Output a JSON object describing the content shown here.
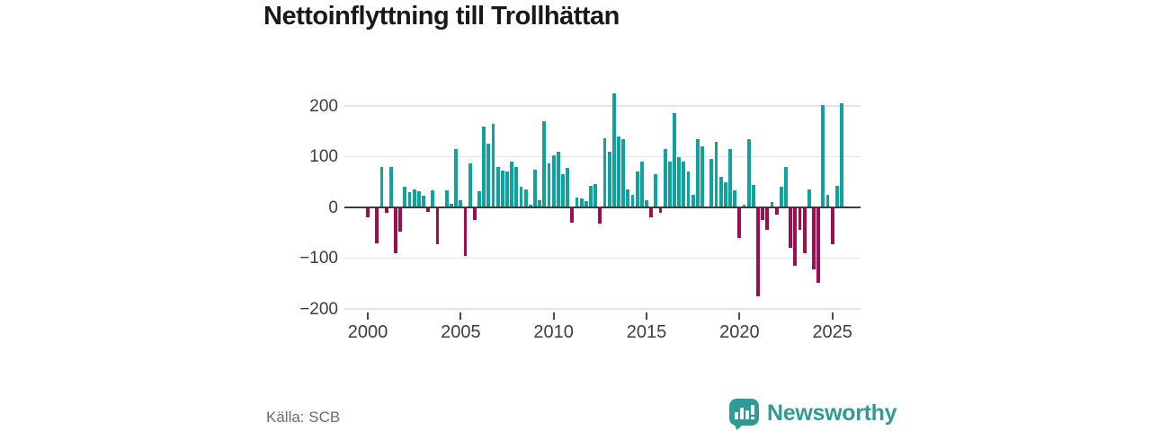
{
  "title": "Nettoinflyttning till Trollhättan",
  "source": "Källa: SCB",
  "branding": {
    "name": "Newsworthy",
    "color": "#2E9C95"
  },
  "chart_data": {
    "type": "bar",
    "title": "Nettoinflyttning till Trollhättan",
    "frequency": "quarterly",
    "start": "2000-Q1",
    "end": "2025-Q3",
    "xlabel": "",
    "ylabel": "",
    "x_tick_labels": [
      "2000",
      "2005",
      "2010",
      "2015",
      "2020",
      "2025"
    ],
    "y_tick_labels": [
      "200",
      "100",
      "0",
      "−100",
      "−200"
    ],
    "y_ticks": [
      200,
      100,
      0,
      -100,
      -200
    ],
    "ylim": [
      -200,
      240
    ],
    "grid": true,
    "legend": false,
    "positive_color": "#0DA39E",
    "negative_color": "#A00D4E",
    "values": [
      -20,
      0,
      -70,
      80,
      -10,
      80,
      -90,
      -48,
      40,
      30,
      36,
      31,
      23,
      -9,
      34,
      -73,
      0,
      33,
      7,
      115,
      15,
      -95,
      87,
      -25,
      32,
      160,
      125,
      165,
      80,
      72,
      70,
      90,
      80,
      40,
      35,
      5,
      75,
      15,
      170,
      87,
      103,
      110,
      65,
      77,
      -30,
      20,
      18,
      12,
      42,
      46,
      -31,
      137,
      110,
      225,
      140,
      135,
      35,
      25,
      70,
      90,
      15,
      -20,
      65,
      -10,
      115,
      90,
      185,
      100,
      90,
      70,
      25,
      135,
      120,
      0,
      95,
      130,
      60,
      50,
      115,
      33,
      -60,
      5,
      135,
      45,
      -175,
      -25,
      -45,
      10,
      -15,
      40,
      80,
      -80,
      -115,
      -45,
      -90,
      35,
      -122,
      -148,
      202,
      25,
      -72,
      43,
      205
    ]
  }
}
